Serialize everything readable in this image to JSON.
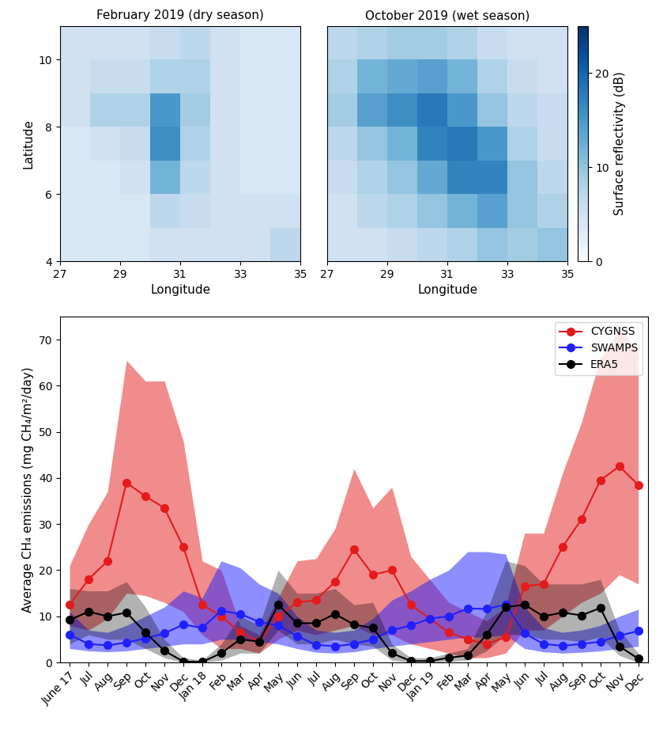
{
  "chart_data": [
    {
      "type": "heatmap",
      "title": "February 2019 (dry season)",
      "x_label": "Longitude",
      "y_label": "Latitude",
      "x_edges": [
        27,
        28,
        29,
        30,
        31,
        32,
        33,
        34,
        35
      ],
      "y_edges": [
        4,
        5,
        6,
        7,
        8,
        9,
        10,
        11
      ],
      "xlim": [
        27,
        35
      ],
      "ylim": [
        4,
        11
      ],
      "xticks": [
        27,
        29,
        31,
        33,
        35
      ],
      "yticks": [
        4,
        6,
        8,
        10
      ],
      "cells": [
        [
          4,
          4,
          4,
          5,
          5,
          5,
          5,
          7
        ],
        [
          4,
          4,
          4,
          7,
          6,
          5,
          5,
          5
        ],
        [
          4,
          4,
          5,
          12,
          7,
          5,
          4,
          4
        ],
        [
          4,
          5,
          6,
          16,
          8,
          5,
          4,
          4
        ],
        [
          5,
          8,
          8,
          15,
          9,
          5,
          4,
          4
        ],
        [
          5,
          6,
          6,
          8,
          8,
          5,
          4,
          4
        ],
        [
          5,
          5,
          5,
          6,
          7,
          5,
          4,
          4
        ]
      ],
      "color_range": [
        0,
        25
      ]
    },
    {
      "type": "heatmap",
      "title": "October 2019 (wet season)",
      "x_label": "Longitude",
      "x_edges": [
        27,
        28,
        29,
        30,
        31,
        32,
        33,
        34,
        35
      ],
      "y_edges": [
        4,
        5,
        6,
        7,
        8,
        9,
        10,
        11
      ],
      "xlim": [
        27,
        35
      ],
      "ylim": [
        4,
        11
      ],
      "xticks": [
        27,
        29,
        31,
        33,
        35
      ],
      "yticks": [
        4,
        6,
        8,
        10
      ],
      "tick_labels": "x",
      "cells": [
        [
          5,
          5,
          6,
          7,
          8,
          10,
          9,
          10
        ],
        [
          5,
          7,
          8,
          10,
          12,
          14,
          10,
          8
        ],
        [
          6,
          8,
          10,
          13,
          17,
          17,
          10,
          7
        ],
        [
          7,
          10,
          12,
          17,
          18,
          15,
          8,
          6
        ],
        [
          9,
          14,
          16,
          18,
          15,
          10,
          7,
          6
        ],
        [
          8,
          12,
          13,
          14,
          12,
          8,
          6,
          5
        ],
        [
          7,
          8,
          9,
          9,
          8,
          6,
          5,
          5
        ]
      ],
      "color_range": [
        0,
        25
      ],
      "colorbar_ticks": [
        0,
        10,
        20
      ],
      "colorbar_label": "Surface reflectivity (dB)"
    },
    {
      "type": "line",
      "y_label": "Average CH₄ emissions (mg CH₄/m²/day)",
      "categories": [
        "June 17",
        "Jul",
        "Aug",
        "Sep",
        "Oct",
        "Nov",
        "Dec",
        "Jan 18",
        "Feb",
        "Mar",
        "Apr",
        "May",
        "Jun",
        "Jul",
        "Aug",
        "Sep",
        "Oct",
        "Nov",
        "Dec",
        "Jan 19",
        "Feb",
        "Mar",
        "Apr",
        "May",
        "Jun",
        "Jul",
        "Aug",
        "Sep",
        "Oct",
        "Nov",
        "Dec"
      ],
      "ylim": [
        0,
        75
      ],
      "yticks": [
        0,
        10,
        20,
        30,
        40,
        50,
        60,
        70
      ],
      "legend": "upper right",
      "series": [
        {
          "name": "CYGNSS",
          "color": "#e41a1c",
          "marker": "o",
          "values": [
            12.5,
            18,
            22,
            39,
            36,
            33.5,
            25,
            12.5,
            10,
            6.5,
            4.5,
            10,
            13,
            13.5,
            17.5,
            24.5,
            19,
            20,
            12.5,
            9.5,
            6.5,
            5,
            4,
            5.5,
            16.5,
            17,
            25,
            31,
            39.5,
            42.5,
            38.5
          ],
          "upper": [
            21,
            30,
            37,
            65.5,
            61,
            61,
            48,
            22,
            20,
            8,
            6,
            14,
            22,
            22.5,
            29,
            42,
            33.5,
            38,
            23,
            18,
            13,
            11,
            9,
            12,
            28,
            28,
            41,
            52,
            66,
            72,
            67.5
          ],
          "lower": [
            8,
            7,
            9.5,
            15,
            14.5,
            13,
            11,
            6,
            3,
            3,
            2,
            5,
            7,
            6,
            7,
            8,
            6,
            6,
            4,
            3,
            2,
            1,
            1,
            2,
            7,
            7,
            10,
            13,
            15,
            19,
            17
          ]
        },
        {
          "name": "SWAMPS",
          "color": "#1f1fff",
          "marker": "o",
          "values": [
            6,
            4,
            3.7,
            4.3,
            5.2,
            6.3,
            8.2,
            7.5,
            11.2,
            10.5,
            8.8,
            8,
            5.7,
            3.8,
            3.5,
            4,
            5,
            7,
            8,
            9.5,
            10,
            11.7,
            11.6,
            12.5,
            6.3,
            4,
            3.6,
            4,
            4.5,
            5.8,
            6.8
          ],
          "upper": [
            11,
            7,
            6.5,
            8,
            10,
            12,
            15.5,
            14,
            22,
            20.5,
            17,
            15,
            10,
            7,
            6.5,
            7,
            9.5,
            13.5,
            15.5,
            18,
            20,
            24,
            24,
            23.5,
            12,
            7.5,
            6.5,
            7,
            8,
            10,
            11.5
          ],
          "lower": [
            3,
            2.5,
            2.3,
            2.5,
            3,
            3.5,
            4,
            4,
            5,
            5,
            4.5,
            4,
            3,
            2.2,
            2,
            2.3,
            3,
            3.5,
            4,
            4.5,
            5,
            5.5,
            5.5,
            6,
            3,
            2.3,
            2,
            2.2,
            2.5,
            3,
            3.5
          ]
        },
        {
          "name": "ERA5",
          "color": "#000000",
          "marker": "o",
          "values": [
            9.2,
            11,
            10,
            10.8,
            6.5,
            2.5,
            0.2,
            0.1,
            2,
            5,
            4.5,
            12.5,
            8.5,
            8.5,
            10.5,
            8.2,
            7.5,
            2,
            0.3,
            0.3,
            1,
            1.5,
            6,
            12,
            12.5,
            10,
            10.8,
            10.2,
            11.8,
            3.5,
            0.8
          ],
          "upper": [
            16,
            15.5,
            15.5,
            17.5,
            12,
            5,
            1,
            0.5,
            4,
            10,
            8,
            20,
            15,
            15,
            16,
            12.5,
            13,
            4,
            1,
            1,
            2,
            3,
            11,
            22,
            21,
            17,
            17,
            17,
            18,
            7,
            2
          ],
          "lower": [
            4,
            6,
            5,
            5,
            3,
            1,
            0,
            0,
            0.5,
            2,
            2,
            7,
            4,
            4,
            5,
            4,
            3.5,
            0.5,
            0,
            0,
            0.2,
            0.5,
            2.5,
            6,
            6,
            5,
            5,
            4.5,
            5.5,
            1.5,
            0
          ]
        }
      ]
    }
  ]
}
